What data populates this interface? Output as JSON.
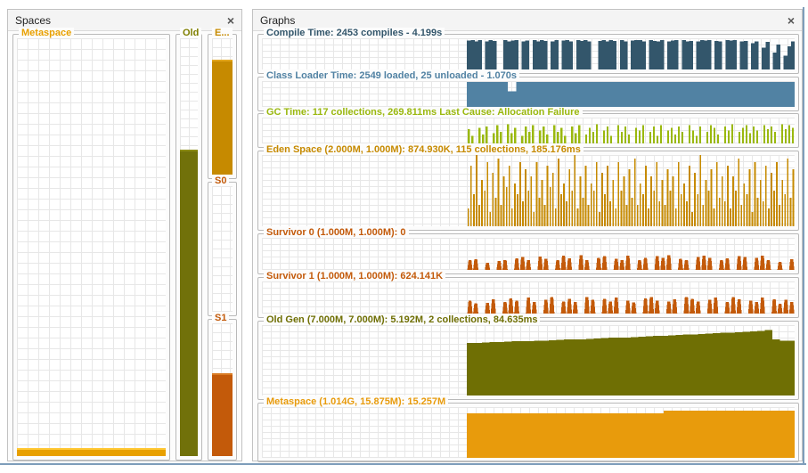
{
  "window": {
    "border_color": "#7E9DBA"
  },
  "spaces_panel": {
    "title": "Spaces",
    "close_label": "×",
    "columns": [
      {
        "id": "metaspace",
        "label": "Metaspace",
        "label_color": "#E8A000",
        "color": "#E8A000",
        "highlight": "#FFC835",
        "level": 0.015
      },
      {
        "id": "old",
        "label": "Old",
        "label_color": "#7F7F00",
        "color": "#71710A",
        "highlight": "#8A8A14",
        "level": 0.73
      },
      {
        "id": "eden",
        "label": "E...",
        "label_color": "#C68A00",
        "color": "#C68A00",
        "highlight": "#E2A51C",
        "level": 0.83
      },
      {
        "id": "s0",
        "label": "S0",
        "label_color": "#C35A0A",
        "color": "#C35A0A",
        "highlight": "#D97B24",
        "level": 0
      },
      {
        "id": "s1",
        "label": "S1",
        "label_color": "#C35A0A",
        "color": "#C35A0A",
        "highlight": "#D97B24",
        "level": 0.61
      }
    ]
  },
  "graphs_panel": {
    "title": "Graphs",
    "close_label": "×"
  },
  "chart_data": [
    {
      "id": "compile-time",
      "type": "bar",
      "style": "blocks",
      "title": "Compile Time: 2453 compiles - 4.199s",
      "color": "#33566B",
      "data_start": 0.385,
      "values": [
        0.93,
        0.95,
        0.9,
        0.95,
        0,
        0.9,
        0.95,
        0.92,
        0,
        0,
        0.95,
        0.9,
        0.93,
        0.95,
        0,
        0.9,
        0.93,
        0,
        0.95,
        0.9,
        0.94,
        0.92,
        0,
        0.9,
        0.95,
        0,
        0.93,
        0.95,
        0.9,
        0,
        0.95,
        0.92,
        0.94,
        0.9,
        0,
        0,
        0.92,
        0.95,
        0.9,
        0.94,
        0.92,
        0,
        0.95,
        0.9,
        0,
        0.93,
        0.95,
        0.94,
        0.9,
        0,
        0.95,
        0.92,
        0.9,
        0.95,
        0,
        0.9,
        0.93,
        0.95,
        0,
        0.94,
        0.9,
        0.92,
        0,
        0.9,
        0.95,
        0.93,
        0.94,
        0,
        0.92,
        0.9,
        0,
        0.95,
        0.93,
        0.94,
        0,
        0.9,
        0.92,
        0,
        0.85,
        0.9,
        0,
        0.7,
        0.88,
        0,
        0.55,
        0.8,
        0,
        0.45,
        0.75,
        0.9
      ]
    },
    {
      "id": "class-loader-time",
      "type": "area",
      "style": "area",
      "title": "Class Loader Time: 2549 loaded, 25 unloaded - 1.070s",
      "color": "#5182A3",
      "data_start": 0.385,
      "values": [
        0.97,
        0.97,
        0.97,
        0.97,
        0.97,
        0.6,
        0.97,
        0.97,
        0.97,
        0.97,
        0.97,
        0.97,
        0.97,
        0.97,
        0.97,
        0.97,
        0.97,
        0.97,
        0.97,
        0.97,
        0.97,
        0.97,
        0.97,
        0.97,
        0.97,
        0.97,
        0.97,
        0.97,
        0.97,
        0.97,
        0.97,
        0.97,
        0.97,
        0.97,
        0.97,
        0.97,
        0.97,
        0.97,
        0.97,
        0.97
      ]
    },
    {
      "id": "gc-time",
      "type": "bar",
      "style": "spikes",
      "title": "GC Time: 117 collections, 269.811ms Last Cause: Allocation Failure",
      "color": "#9AB80E",
      "data_start": 0.385,
      "values": [
        0.55,
        0.3,
        0,
        0.6,
        0.35,
        0.65,
        0,
        0.4,
        0.7,
        0.45,
        0,
        0.75,
        0.4,
        0.6,
        0,
        0.3,
        0.65,
        0.45,
        0.7,
        0,
        0.5,
        0.65,
        0.35,
        0,
        0.7,
        0.45,
        0.6,
        0.3,
        0,
        0.65,
        0.4,
        0.7,
        0,
        0.35,
        0.6,
        0.45,
        0.75,
        0,
        0.5,
        0.65,
        0.3,
        0,
        0.7,
        0.45,
        0.65,
        0.35,
        0,
        0.6,
        0.5,
        0.7,
        0,
        0.45,
        0.65,
        0.3,
        0.7,
        0,
        0.5,
        0.6,
        0.35,
        0.65,
        0.45,
        0,
        0.7,
        0.5,
        0.3,
        0.65,
        0,
        0.45,
        0.7,
        0.6,
        0.35,
        0,
        0.65,
        0.5,
        0.75,
        0,
        0.45,
        0.6,
        0.7,
        0.4,
        0.65,
        0.5,
        0,
        0.7,
        0.55,
        0.65,
        0.45,
        0,
        0.75,
        0.55,
        0.7,
        0.6
      ]
    },
    {
      "id": "eden-space",
      "type": "bar",
      "style": "spikes",
      "title": "Eden Space (2.000M, 1.000M): 874.930K, 115 collections, 185.176ms",
      "color": "#C68A00",
      "data_start": 0.385,
      "values": [
        0.25,
        0.85,
        0.45,
        1,
        0.3,
        0.65,
        0.5,
        0.9,
        0.2,
        0.75,
        0.4,
        0.95,
        0.3,
        0.7,
        0.55,
        0.85,
        0.25,
        0.6,
        0.45,
        0.9,
        0.35,
        0.8,
        0.5,
        0.7,
        0.2,
        0.9,
        0.4,
        0.65,
        0.3,
        0.85,
        0.55,
        0.75,
        0.25,
        0.95,
        0.45,
        0.6,
        0.35,
        0.8,
        0.5,
        1,
        0.25,
        0.7,
        0.4,
        0.85,
        0.3,
        0.6,
        0.5,
        0.9,
        0.2,
        0.75,
        0.45,
        0.85,
        0.35,
        0.65,
        0.25,
        0.9,
        0.5,
        0.7,
        0.3,
        0.8,
        0.4,
        0.95,
        0.3,
        0.6,
        0.45,
        0.85,
        0.25,
        0.7,
        0.5,
        0.9,
        0.35,
        0.65,
        0.3,
        0.8,
        0.5,
        0.7,
        0.25,
        0.9,
        0.45,
        0.6,
        0.35,
        0.85,
        0.2,
        0.75,
        0.45,
        1,
        0.3,
        0.65,
        0.5,
        0.8,
        0.25,
        0.9,
        0.4,
        0.7,
        0.35,
        0.85,
        0.25,
        0.7,
        0.5,
        0.95,
        0.3,
        0.6,
        0.45,
        0.8,
        0.2,
        0.9,
        0.4,
        0.65,
        0.35,
        0.85,
        0.25,
        0.75,
        0.5,
        0.9,
        0.3,
        0.65,
        0.45,
        0.95,
        0.4,
        0.8
      ]
    },
    {
      "id": "survivor-0",
      "type": "bar",
      "style": "bumps",
      "title": "Survivor 0 (1.000M, 1.000M): 0",
      "color": "#C35A0A",
      "data_start": 0.385,
      "values": [
        0.3,
        0.33,
        0,
        0.22,
        0,
        0.28,
        0.31,
        0,
        0.36,
        0.4,
        0.3,
        0,
        0.42,
        0.35,
        0,
        0.3,
        0.44,
        0.36,
        0,
        0.46,
        0.3,
        0,
        0.38,
        0.43,
        0,
        0.35,
        0.3,
        0.45,
        0,
        0.3,
        0.37,
        0,
        0.43,
        0.38,
        0.46,
        0,
        0.35,
        0.3,
        0,
        0.4,
        0.45,
        0.38,
        0,
        0.3,
        0.36,
        0,
        0.43,
        0.4,
        0,
        0.37,
        0.45,
        0.3,
        0,
        0.25,
        0,
        0.34
      ]
    },
    {
      "id": "survivor-1",
      "type": "bar",
      "style": "bumps",
      "title": "Survivor 1 (1.000M, 1.000M): 624.141K",
      "color": "#C35A0A",
      "data_start": 0.385,
      "values": [
        0.4,
        0.32,
        0,
        0.34,
        0.44,
        0,
        0.36,
        0.47,
        0.4,
        0,
        0.5,
        0.36,
        0,
        0.43,
        0.52,
        0,
        0.38,
        0.46,
        0.36,
        0,
        0.52,
        0.43,
        0,
        0.46,
        0.38,
        0.5,
        0,
        0.4,
        0.35,
        0,
        0.47,
        0.52,
        0.4,
        0,
        0.38,
        0.45,
        0,
        0.52,
        0.46,
        0.38,
        0,
        0.43,
        0.5,
        0,
        0.36,
        0.52,
        0.45,
        0,
        0.4,
        0.36,
        0.5,
        0,
        0.45,
        0.3,
        0.43,
        0.36
      ]
    },
    {
      "id": "old-gen",
      "type": "area",
      "style": "area",
      "title": "Old Gen (7.000M, 7.000M): 5.192M, 2 collections, 84.635ms",
      "color": "#6F6F04",
      "data_start": 0.385,
      "values": [
        0.75,
        0.75,
        0.755,
        0.76,
        0.76,
        0.765,
        0.77,
        0.77,
        0.775,
        0.78,
        0.78,
        0.785,
        0.79,
        0.795,
        0.8,
        0.8,
        0.805,
        0.81,
        0.815,
        0.82,
        0.82,
        0.825,
        0.83,
        0.835,
        0.84,
        0.845,
        0.85,
        0.855,
        0.86,
        0.865,
        0.87,
        0.875,
        0.88,
        0.885,
        0.89,
        0.895,
        0.9,
        0.905,
        0.91,
        0.92,
        0.93,
        0.8,
        0.78,
        0.78
      ]
    },
    {
      "id": "metaspace-graph",
      "type": "area",
      "style": "area",
      "title": "Metaspace (1.014G, 15.875M): 15.257M",
      "color": "#E89B0C",
      "data_start": 0.385,
      "values": [
        0.88,
        0.88,
        0.88,
        0.88,
        0.88,
        0.88,
        0.88,
        0.88,
        0.88,
        0.88,
        0.88,
        0.88,
        0.88,
        0.88,
        0.88,
        0.88,
        0.88,
        0.88,
        0.88,
        0.88,
        0.88,
        0.88,
        0.88,
        0.88,
        0.93,
        0.93,
        0.93,
        0.93,
        0.93,
        0.93,
        0.93,
        0.93,
        0.93,
        0.93,
        0.93,
        0.93,
        0.93,
        0.93,
        0.93,
        0.93
      ]
    }
  ]
}
